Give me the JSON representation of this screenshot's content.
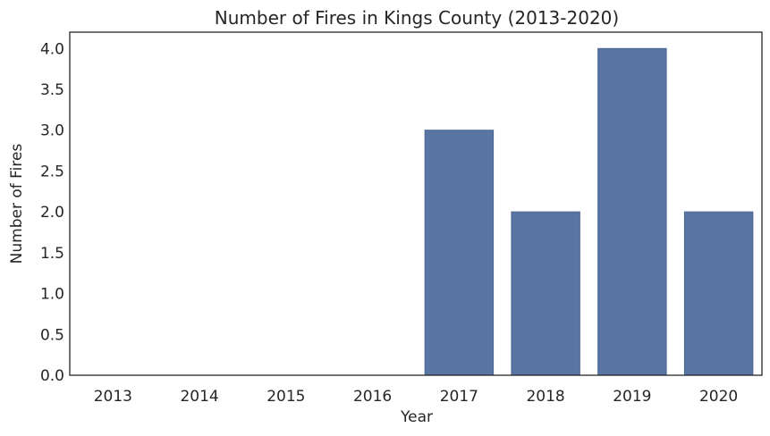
{
  "chart_data": {
    "type": "bar",
    "title": "Number of Fires in Kings County (2013-2020)",
    "xlabel": "Year",
    "ylabel": "Number of Fires",
    "categories": [
      "2013",
      "2014",
      "2015",
      "2016",
      "2017",
      "2018",
      "2019",
      "2020"
    ],
    "values": [
      0,
      0,
      0,
      0,
      3,
      2,
      4,
      2
    ],
    "ylim": [
      0,
      4.2
    ],
    "yticks": [
      "0.0",
      "0.5",
      "1.0",
      "1.5",
      "2.0",
      "2.5",
      "3.0",
      "3.5",
      "4.0"
    ],
    "grid": false,
    "bar_color": "#5975a4",
    "bar_edge_color": "#4c6690"
  }
}
